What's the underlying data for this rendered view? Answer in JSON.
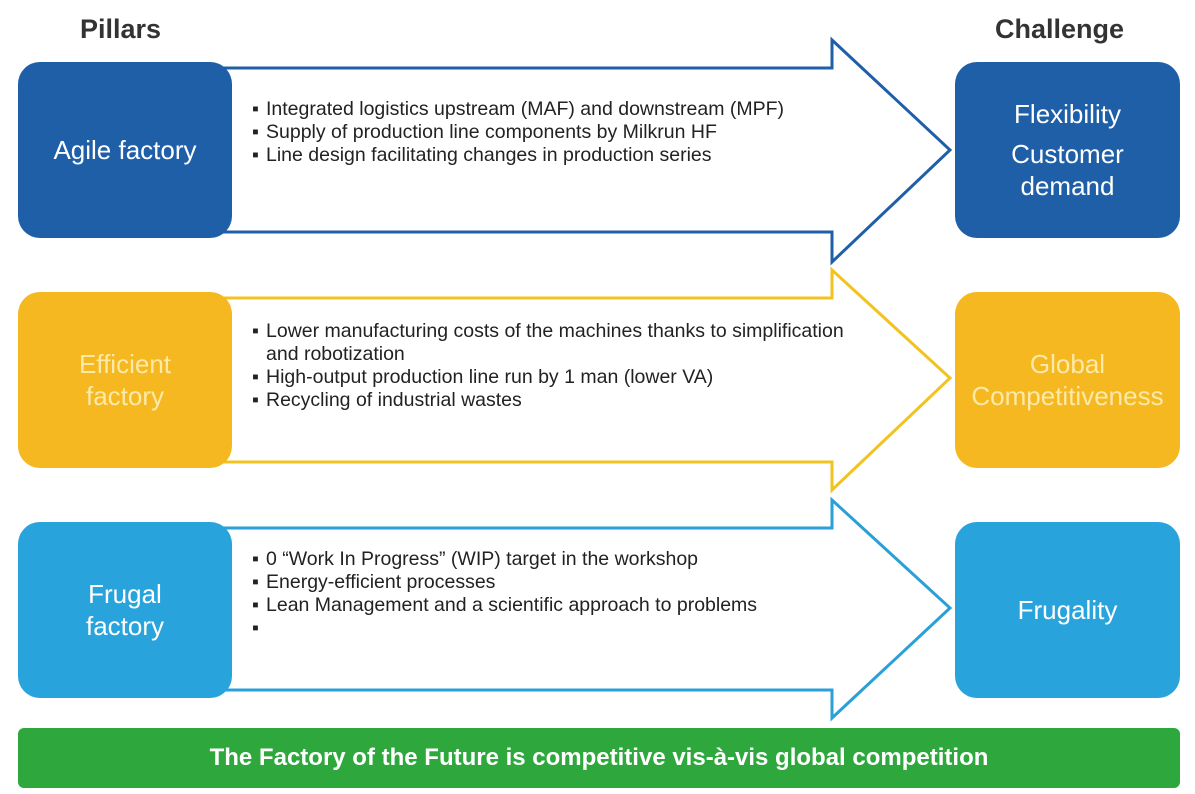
{
  "header": {
    "left": "Pillars",
    "right": "Challenge"
  },
  "rows": [
    {
      "pillar": "Agile factory",
      "bullets": [
        "Integrated logistics upstream (MAF) and downstream (MPF)",
        "Supply of production line components by Milkrun HF",
        "Line design facilitating changes in production series"
      ],
      "challenge": [
        "Flexibility",
        "Customer demand"
      ]
    },
    {
      "pillar": "Efficient factory",
      "bullets": [
        "Lower manufacturing costs of the machines thanks to simplification and robotization",
        "High-output production line run by 1 man (lower VA)",
        "Recycling of industrial wastes"
      ],
      "challenge": [
        "Global Competitiveness"
      ]
    },
    {
      "pillar": "Frugal factory",
      "bullets": [
        "0 “Work In Progress” (WIP) target in the workshop",
        "Energy-efficient processes",
        "Lean Management and a scientific approach to problems"
      ],
      "challenge": [
        "Frugality"
      ]
    }
  ],
  "footer": "The Factory of the Future is competitive vis-à-vis global competition"
}
